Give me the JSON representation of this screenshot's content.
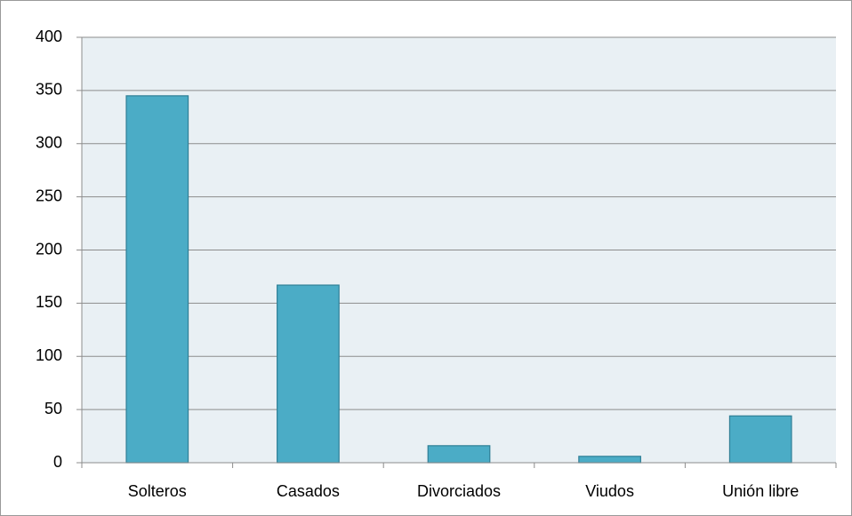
{
  "chart_data": {
    "type": "bar",
    "categories": [
      "Solteros",
      "Casados",
      "Divorciados",
      "Viudos",
      "Unión libre"
    ],
    "values": [
      345,
      167,
      16,
      6,
      44
    ],
    "color": "#4bacc6",
    "ylim": [
      0,
      400
    ],
    "yticks": [
      0,
      50,
      100,
      150,
      200,
      250,
      300,
      350,
      400
    ],
    "grid": true
  }
}
